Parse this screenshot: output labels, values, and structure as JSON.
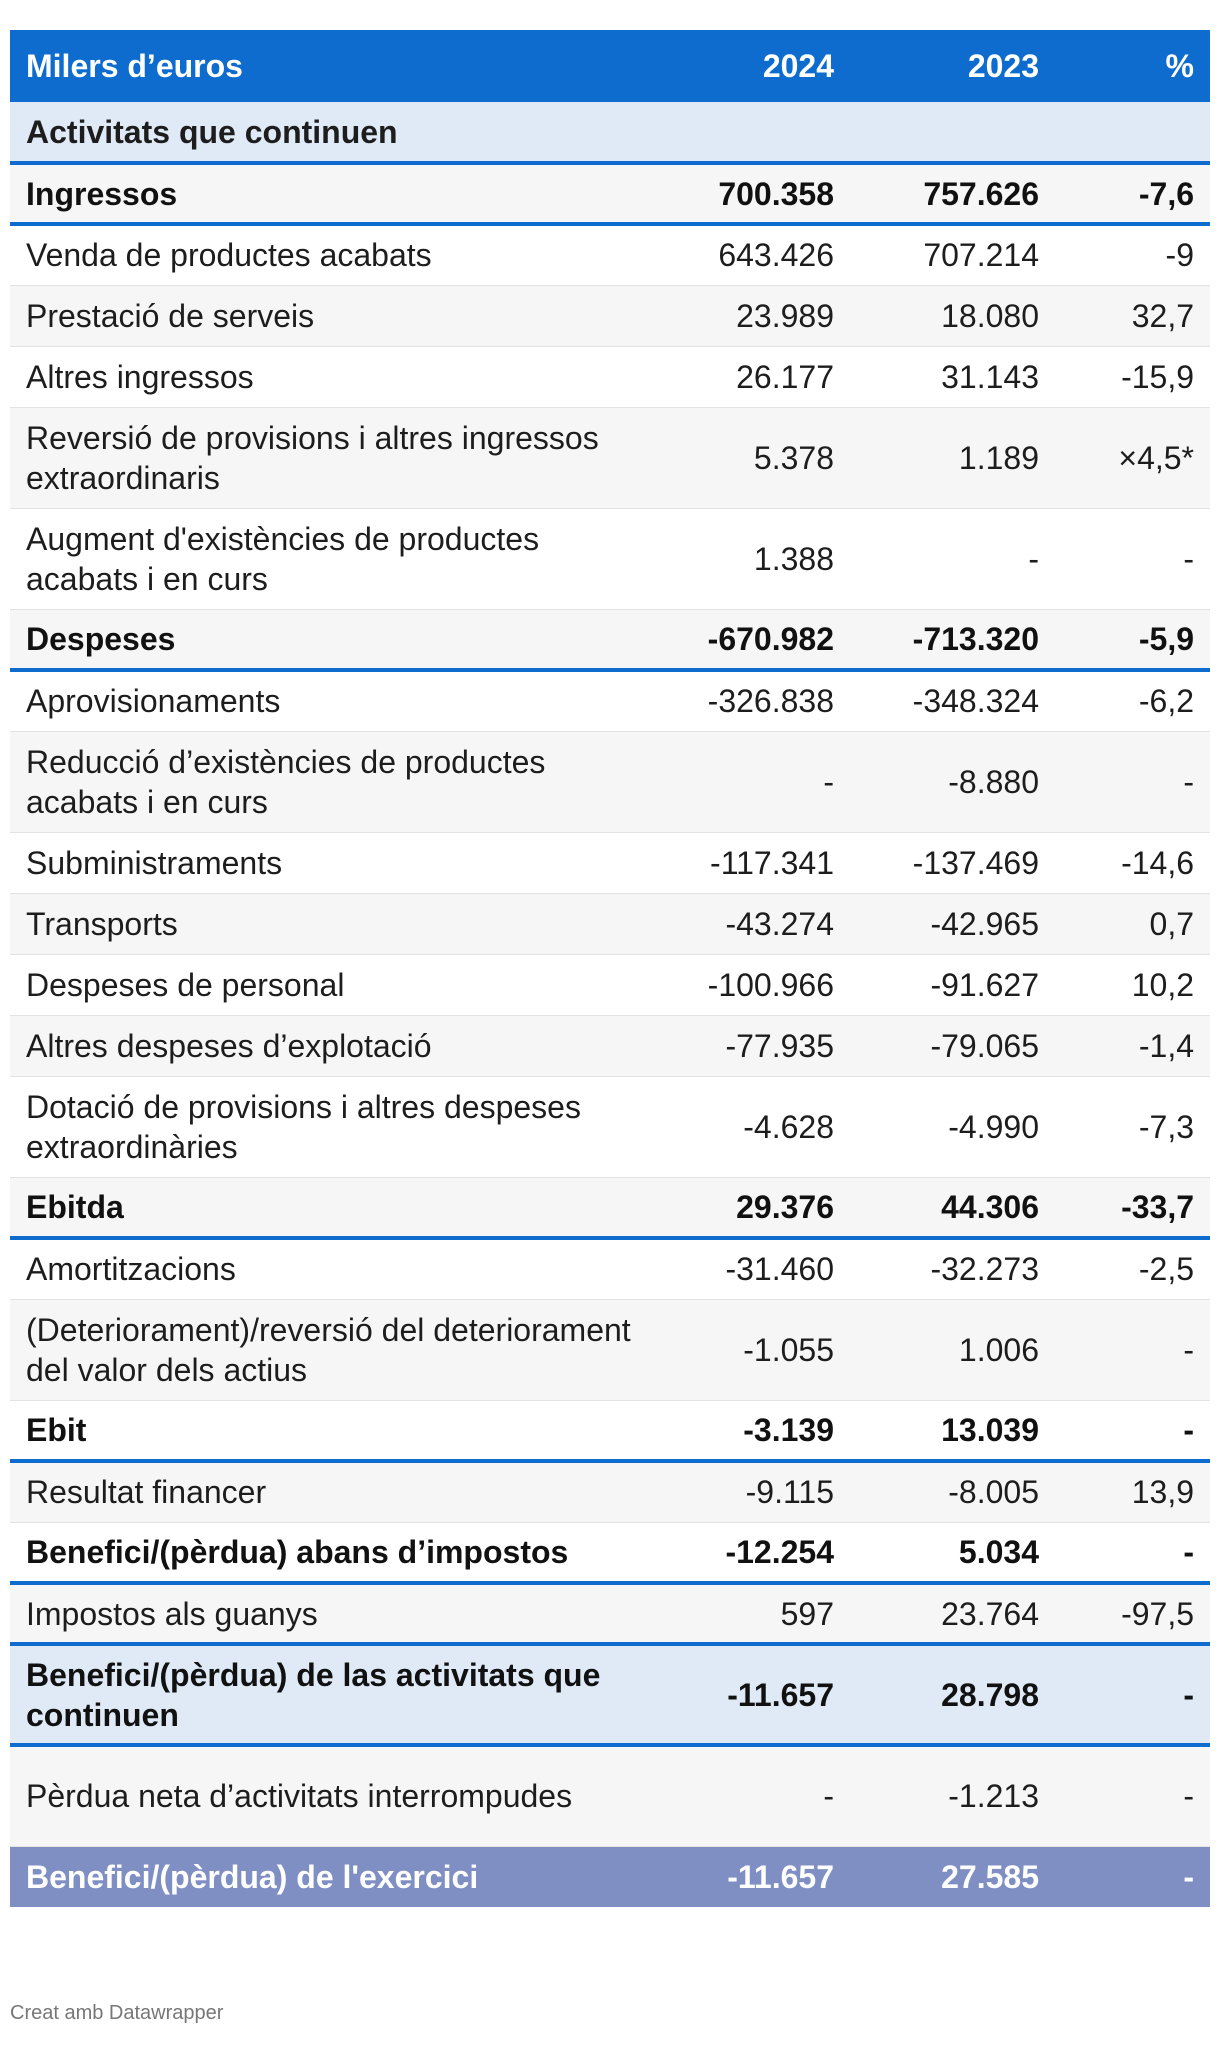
{
  "header": {
    "label": "Milers d’euros",
    "year1": "2024",
    "year2": "2023",
    "pct": "%"
  },
  "section_title": "Activitats que continuen",
  "rows": [
    {
      "label": "Ingressos",
      "y1": "700.358",
      "y2": "757.626",
      "pct": "-7,6"
    },
    {
      "label": "Venda de productes acabats",
      "y1": "643.426",
      "y2": "707.214",
      "pct": "-9"
    },
    {
      "label": "Prestació de serveis",
      "y1": "23.989",
      "y2": "18.080",
      "pct": "32,7"
    },
    {
      "label": "Altres ingressos",
      "y1": "26.177",
      "y2": "31.143",
      "pct": "-15,9"
    },
    {
      "label": "Reversió de provisions i altres ingressos extraordinaris",
      "y1": "5.378",
      "y2": "1.189",
      "pct": "×4,5*"
    },
    {
      "label": "Augment d'existències de productes acabats i en curs",
      "y1": "1.388",
      "y2": "-",
      "pct": "-"
    },
    {
      "label": "Despeses",
      "y1": "-670.982",
      "y2": "-713.320",
      "pct": "-5,9"
    },
    {
      "label": "Aprovisionaments",
      "y1": "-326.838",
      "y2": "-348.324",
      "pct": "-6,2"
    },
    {
      "label": "Reducció d’existències de productes acabats i en curs",
      "y1": "-",
      "y2": "-8.880",
      "pct": "-"
    },
    {
      "label": "Subministraments",
      "y1": "-117.341",
      "y2": "-137.469",
      "pct": "-14,6"
    },
    {
      "label": "Transports",
      "y1": "-43.274",
      "y2": "-42.965",
      "pct": "0,7"
    },
    {
      "label": "Despeses de personal",
      "y1": "-100.966",
      "y2": "-91.627",
      "pct": "10,2"
    },
    {
      "label": "Altres despeses d’explotació",
      "y1": "-77.935",
      "y2": "-79.065",
      "pct": "-1,4"
    },
    {
      "label": "Dotació de provisions i altres despeses extraordinàries",
      "y1": "-4.628",
      "y2": "-4.990",
      "pct": "-7,3"
    },
    {
      "label": "Ebitda",
      "y1": "29.376",
      "y2": "44.306",
      "pct": "-33,7"
    },
    {
      "label": "Amortitzacions",
      "y1": "-31.460",
      "y2": "-32.273",
      "pct": "-2,5"
    },
    {
      "label": "(Deteriorament)/reversió del deteriorament del valor dels actius",
      "y1": "-1.055",
      "y2": "1.006",
      "pct": "-"
    },
    {
      "label": "Ebit",
      "y1": "-3.139",
      "y2": "13.039",
      "pct": "-"
    },
    {
      "label": "Resultat financer",
      "y1": "-9.115",
      "y2": "-8.005",
      "pct": "13,9"
    },
    {
      "label": "Benefici/(pèrdua) abans d’impostos",
      "y1": "-12.254",
      "y2": "5.034",
      "pct": "-"
    },
    {
      "label": "Impostos als guanys",
      "y1": "597",
      "y2": "23.764",
      "pct": "-97,5"
    },
    {
      "label": "Benefici/(pèrdua) de las activitats que continuen",
      "y1": "-11.657",
      "y2": "28.798",
      "pct": "-"
    },
    {
      "label": "Pèrdua neta d’activitats interrompudes",
      "y1": "-",
      "y2": "-1.213",
      "pct": "-"
    },
    {
      "label": "Benefici/(pèrdua) de l'exercici",
      "y1": "-11.657",
      "y2": "27.585",
      "pct": "-"
    }
  ],
  "footer": "Creat amb Datawrapper"
}
